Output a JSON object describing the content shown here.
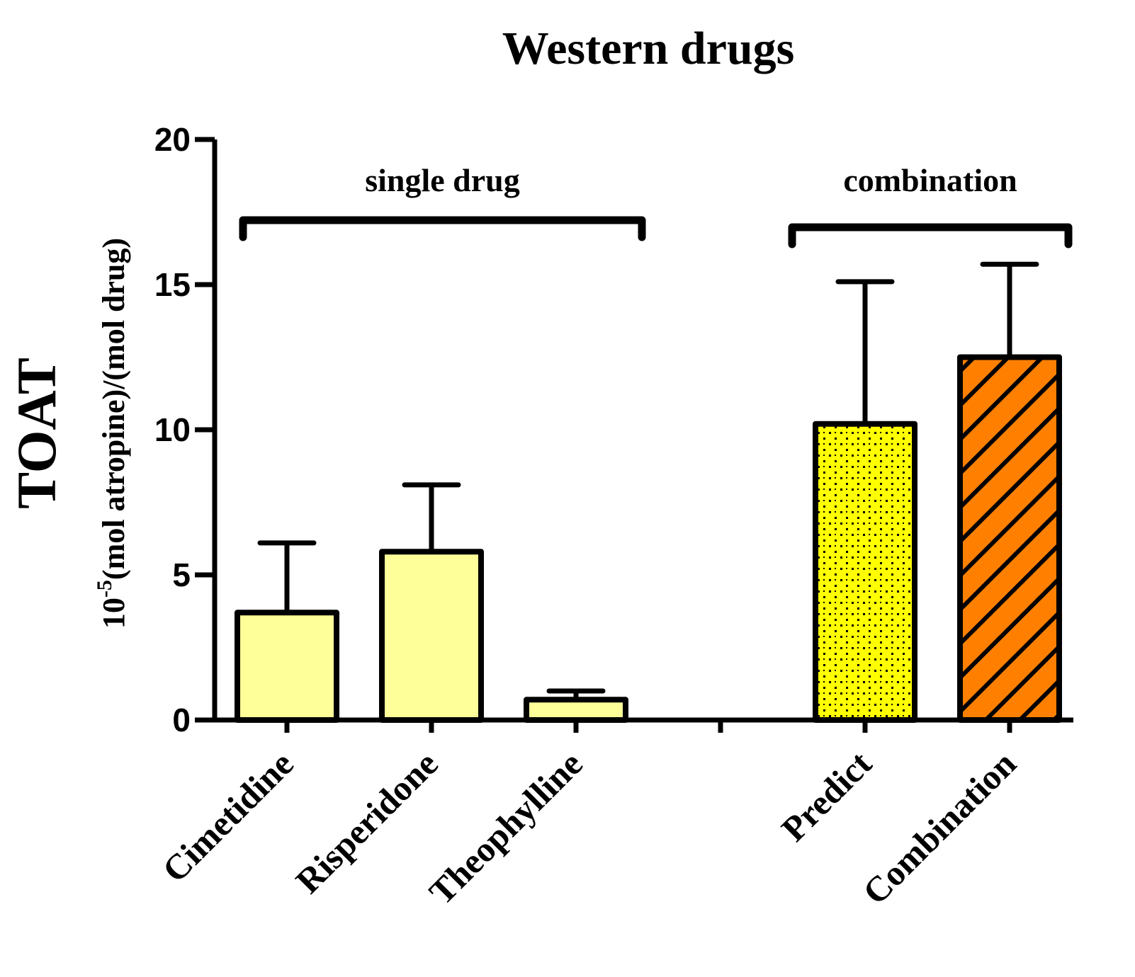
{
  "chart_data": {
    "type": "bar",
    "title": "Western drugs",
    "ylabel": "TOAT",
    "ylabel_units": "10-5(mol atropine)/(mol drug)",
    "ylabel_units_parts": {
      "base": "10",
      "exponent": "-5",
      "rest": "(mol atropine)/(mol drug)"
    },
    "ylim": [
      0,
      20
    ],
    "yticks": [
      "0",
      "5",
      "10",
      "15",
      "20"
    ],
    "categories": [
      "Cimetidine",
      "Risperidone",
      "Theophylline",
      "",
      "Predict",
      "Combination"
    ],
    "values": [
      3.7,
      5.8,
      0.7,
      null,
      10.2,
      12.5
    ],
    "error_upper": [
      6.1,
      8.1,
      1.0,
      null,
      15.1,
      15.7
    ],
    "bar_fill": [
      "light-yellow",
      "light-yellow",
      "light-yellow",
      null,
      "yellow-dotted",
      "orange-hatched"
    ],
    "groups": [
      {
        "label": "single drug",
        "categories": [
          "Cimetidine",
          "Risperidone",
          "Theophylline"
        ]
      },
      {
        "label": "combination",
        "categories": [
          "Predict",
          "Combination"
        ]
      }
    ],
    "colors": {
      "light_yellow": "#FFFF99",
      "yellow": "#FFFF00",
      "orange": "#FF8000",
      "outline": "#000000"
    }
  }
}
